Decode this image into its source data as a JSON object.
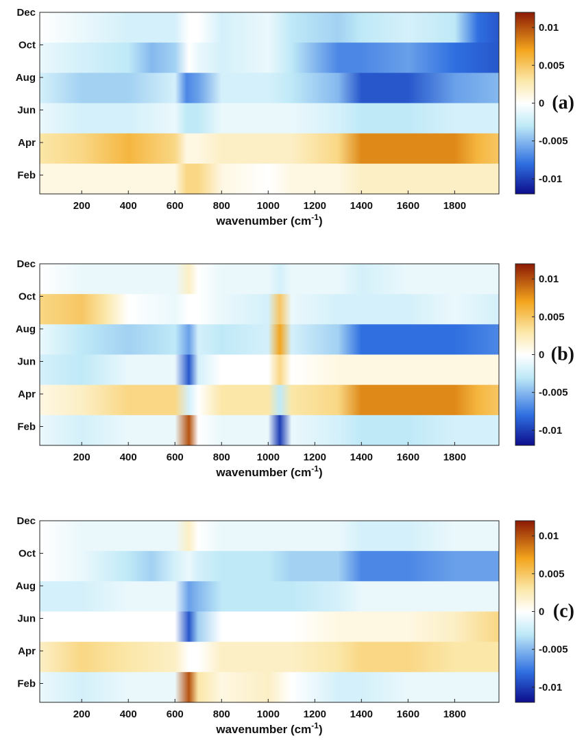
{
  "colors": {
    "strong_negative": "#0d0d8c",
    "negative": "#2f6fe0",
    "weak_negative": "#bfe9f7",
    "zero": "#ffffff",
    "weak_positive": "#fbe7a8",
    "positive": "#f3a51d",
    "strong_positive": "#8b1a05"
  },
  "chart_data": [
    {
      "id": "a",
      "type": "heatmap",
      "panel_label": "(a)",
      "xlabel_main": "wavenumber (cm",
      "xlabel_sup": "-1",
      "xlabel_end": ")",
      "ylabel": "",
      "xlim": [
        20,
        1990
      ],
      "xticks": [
        200,
        400,
        600,
        800,
        1000,
        1200,
        1400,
        1600,
        1800
      ],
      "yticks": [
        "Dec",
        "Oct",
        "Aug",
        "Jun",
        "Apr",
        "Feb"
      ],
      "colorbar": {
        "range": [
          -0.012,
          0.012
        ],
        "ticks": [
          "0.01",
          "0.005",
          "0",
          "-0.005",
          "-0.01"
        ]
      },
      "rows": [
        {
          "month": "Dec",
          "wavenumber": [
            20,
            200,
            400,
            600,
            660,
            700,
            800,
            1000,
            1100,
            1300,
            1400,
            1600,
            1800,
            1900,
            1990
          ],
          "value": [
            0.0,
            -0.001,
            -0.002,
            -0.002,
            0.0,
            0.0,
            -0.002,
            -0.001,
            -0.003,
            -0.004,
            -0.003,
            -0.002,
            -0.003,
            -0.008,
            -0.009
          ]
        },
        {
          "month": "Oct",
          "wavenumber": [
            20,
            200,
            400,
            500,
            600,
            660,
            700,
            800,
            1000,
            1100,
            1300,
            1400,
            1600,
            1800,
            1990
          ],
          "value": [
            -0.001,
            -0.002,
            -0.003,
            -0.005,
            -0.004,
            0.0,
            -0.001,
            -0.002,
            -0.001,
            -0.003,
            -0.007,
            -0.007,
            -0.006,
            -0.008,
            -0.009
          ]
        },
        {
          "month": "Aug",
          "wavenumber": [
            20,
            200,
            400,
            600,
            650,
            700,
            800,
            1000,
            1100,
            1300,
            1400,
            1450,
            1600,
            1800,
            1990
          ],
          "value": [
            -0.002,
            -0.004,
            -0.004,
            -0.002,
            -0.007,
            -0.006,
            -0.002,
            -0.002,
            -0.003,
            -0.005,
            -0.009,
            -0.009,
            -0.009,
            -0.006,
            -0.005
          ]
        },
        {
          "month": "Jun",
          "wavenumber": [
            20,
            200,
            400,
            600,
            650,
            700,
            800,
            1000,
            1100,
            1300,
            1400,
            1600,
            1800,
            1990
          ],
          "value": [
            -0.001,
            -0.002,
            -0.002,
            -0.001,
            -0.003,
            -0.003,
            -0.001,
            -0.001,
            -0.001,
            -0.002,
            -0.003,
            -0.003,
            -0.002,
            -0.002
          ]
        },
        {
          "month": "Apr",
          "wavenumber": [
            20,
            200,
            400,
            600,
            650,
            700,
            800,
            1000,
            1100,
            1300,
            1400,
            1600,
            1800,
            1900,
            1990
          ],
          "value": [
            0.003,
            0.004,
            0.006,
            0.004,
            0.001,
            0.001,
            0.002,
            0.002,
            0.002,
            0.004,
            0.008,
            0.008,
            0.008,
            0.006,
            0.005
          ]
        },
        {
          "month": "Feb",
          "wavenumber": [
            20,
            200,
            400,
            600,
            650,
            700,
            800,
            1000,
            1100,
            1300,
            1400,
            1600,
            1800,
            1990
          ],
          "value": [
            0.001,
            0.001,
            0.001,
            0.001,
            0.004,
            0.004,
            0.001,
            0.0,
            0.001,
            0.001,
            0.002,
            0.002,
            0.002,
            0.002
          ]
        }
      ]
    },
    {
      "id": "b",
      "type": "heatmap",
      "panel_label": "(b)",
      "xlabel_main": "wavenumber (cm",
      "xlabel_sup": "-1",
      "xlabel_end": ")",
      "ylabel": "",
      "xlim": [
        20,
        1990
      ],
      "xticks": [
        200,
        400,
        600,
        800,
        1000,
        1200,
        1400,
        1600,
        1800
      ],
      "yticks": [
        "Dec",
        "Oct",
        "Aug",
        "Jun",
        "Apr",
        "Feb"
      ],
      "colorbar": {
        "range": [
          -0.012,
          0.012
        ],
        "ticks": [
          "0.01",
          "0.005",
          "0",
          "-0.005",
          "-0.01"
        ]
      },
      "rows": [
        {
          "month": "Dec",
          "wavenumber": [
            20,
            200,
            400,
            600,
            660,
            700,
            800,
            1000,
            1050,
            1100,
            1300,
            1400,
            1600,
            1800,
            1990
          ],
          "value": [
            0.0,
            -0.001,
            -0.001,
            -0.001,
            0.002,
            0.0,
            -0.001,
            -0.001,
            -0.002,
            -0.001,
            -0.001,
            -0.002,
            -0.001,
            -0.001,
            -0.001
          ]
        },
        {
          "month": "Oct",
          "wavenumber": [
            20,
            200,
            300,
            400,
            600,
            660,
            700,
            800,
            1000,
            1050,
            1100,
            1300,
            1400,
            1600,
            1800,
            1990
          ],
          "value": [
            0.004,
            0.005,
            0.003,
            0.0,
            -0.001,
            0.0,
            0.0,
            -0.001,
            -0.002,
            0.005,
            -0.001,
            -0.002,
            -0.002,
            -0.002,
            -0.001,
            -0.002
          ]
        },
        {
          "month": "Aug",
          "wavenumber": [
            20,
            200,
            400,
            600,
            660,
            700,
            800,
            1000,
            1050,
            1100,
            1300,
            1400,
            1600,
            1800,
            1990
          ],
          "value": [
            -0.001,
            -0.003,
            -0.004,
            -0.003,
            -0.006,
            -0.002,
            -0.003,
            -0.002,
            0.007,
            -0.002,
            -0.004,
            -0.008,
            -0.008,
            -0.008,
            -0.007
          ]
        },
        {
          "month": "Jun",
          "wavenumber": [
            20,
            200,
            400,
            600,
            660,
            700,
            800,
            1000,
            1050,
            1100,
            1300,
            1400,
            1600,
            1800,
            1990
          ],
          "value": [
            -0.002,
            -0.003,
            -0.001,
            -0.001,
            -0.009,
            -0.002,
            0.0,
            0.0,
            0.004,
            0.0,
            0.001,
            0.001,
            0.001,
            0.001,
            0.001
          ]
        },
        {
          "month": "Apr",
          "wavenumber": [
            20,
            200,
            400,
            600,
            660,
            700,
            800,
            1000,
            1050,
            1100,
            1300,
            1400,
            1600,
            1800,
            1900,
            1990
          ],
          "value": [
            0.001,
            0.002,
            0.004,
            0.004,
            -0.002,
            0.0,
            0.003,
            0.003,
            -0.003,
            0.003,
            0.004,
            0.008,
            0.008,
            0.008,
            0.006,
            0.005
          ]
        },
        {
          "month": "Feb",
          "wavenumber": [
            20,
            200,
            400,
            600,
            660,
            700,
            800,
            1000,
            1050,
            1100,
            1300,
            1400,
            1600,
            1800,
            1990
          ],
          "value": [
            -0.001,
            -0.002,
            -0.001,
            -0.001,
            0.01,
            0.0,
            -0.001,
            -0.001,
            -0.01,
            -0.001,
            -0.002,
            -0.003,
            -0.003,
            -0.002,
            -0.002
          ]
        }
      ]
    },
    {
      "id": "c",
      "type": "heatmap",
      "panel_label": "(c)",
      "xlabel_main": "wavenumber (cm",
      "xlabel_sup": "-1",
      "xlabel_end": ")",
      "ylabel": "",
      "xlim": [
        20,
        1990
      ],
      "xticks": [
        200,
        400,
        600,
        800,
        1000,
        1200,
        1400,
        1600,
        1800
      ],
      "yticks": [
        "Dec",
        "Oct",
        "Aug",
        "Jun",
        "Apr",
        "Feb"
      ],
      "colorbar": {
        "range": [
          -0.012,
          0.012
        ],
        "ticks": [
          "0.01",
          "0.005",
          "0",
          "-0.005",
          "-0.01"
        ]
      },
      "rows": [
        {
          "month": "Dec",
          "wavenumber": [
            20,
            200,
            400,
            600,
            660,
            700,
            800,
            1000,
            1100,
            1300,
            1400,
            1600,
            1800,
            1990
          ],
          "value": [
            0.0,
            -0.001,
            -0.001,
            -0.001,
            0.002,
            0.0,
            -0.001,
            -0.001,
            -0.001,
            -0.001,
            -0.002,
            -0.002,
            -0.001,
            -0.001
          ]
        },
        {
          "month": "Oct",
          "wavenumber": [
            20,
            200,
            400,
            500,
            600,
            660,
            700,
            800,
            1000,
            1100,
            1300,
            1400,
            1600,
            1800,
            1990
          ],
          "value": [
            0.0,
            -0.001,
            -0.003,
            -0.004,
            -0.002,
            -0.001,
            -0.002,
            -0.003,
            -0.003,
            -0.004,
            -0.004,
            -0.007,
            -0.007,
            -0.006,
            -0.006
          ]
        },
        {
          "month": "Aug",
          "wavenumber": [
            20,
            200,
            400,
            600,
            660,
            700,
            800,
            1000,
            1100,
            1300,
            1400,
            1600,
            1800,
            1990
          ],
          "value": [
            -0.002,
            -0.002,
            -0.001,
            -0.001,
            -0.006,
            -0.005,
            -0.003,
            -0.003,
            -0.003,
            -0.002,
            -0.001,
            -0.001,
            -0.001,
            -0.001
          ]
        },
        {
          "month": "Jun",
          "wavenumber": [
            20,
            200,
            400,
            600,
            660,
            700,
            800,
            1000,
            1100,
            1300,
            1400,
            1600,
            1800,
            1990
          ],
          "value": [
            0.0,
            0.0,
            0.0,
            0.0,
            -0.009,
            -0.004,
            0.0,
            0.0,
            0.0,
            0.001,
            0.001,
            0.001,
            0.002,
            0.004
          ]
        },
        {
          "month": "Apr",
          "wavenumber": [
            20,
            200,
            400,
            600,
            660,
            700,
            800,
            1000,
            1100,
            1300,
            1400,
            1600,
            1800,
            1990
          ],
          "value": [
            0.002,
            0.004,
            0.003,
            0.002,
            0.0,
            0.0,
            0.002,
            0.002,
            0.002,
            0.003,
            0.004,
            0.004,
            0.003,
            0.003
          ]
        },
        {
          "month": "Feb",
          "wavenumber": [
            20,
            200,
            400,
            600,
            660,
            700,
            800,
            1000,
            1100,
            1300,
            1400,
            1600,
            1800,
            1990
          ],
          "value": [
            -0.001,
            -0.002,
            -0.001,
            -0.001,
            0.01,
            0.003,
            0.001,
            0.002,
            0.0,
            -0.002,
            -0.002,
            -0.001,
            -0.001,
            -0.001
          ]
        }
      ]
    }
  ]
}
